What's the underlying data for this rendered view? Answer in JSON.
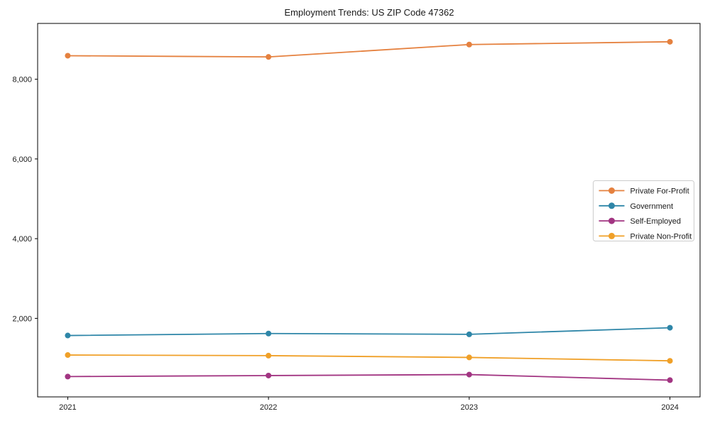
{
  "chart_data": {
    "type": "line",
    "title": "Employment Trends: US ZIP Code 47362",
    "xlabel": "",
    "ylabel": "",
    "categories": [
      "2021",
      "2022",
      "2023",
      "2024"
    ],
    "series": [
      {
        "name": "Private For-Profit",
        "color": "#E5813F",
        "values": [
          8590,
          8560,
          8870,
          8940
        ]
      },
      {
        "name": "Government",
        "color": "#2E86A8",
        "values": [
          1570,
          1620,
          1600,
          1765
        ]
      },
      {
        "name": "Self-Employed",
        "color": "#A23582",
        "values": [
          540,
          565,
          590,
          450
        ]
      },
      {
        "name": "Private Non-Profit",
        "color": "#F0A028",
        "values": [
          1080,
          1065,
          1020,
          935
        ]
      }
    ],
    "ylim": [
      30,
      9400
    ],
    "y_ticks": [
      2000,
      4000,
      6000,
      8000
    ],
    "y_tick_labels": [
      "2,000",
      "4,000",
      "6,000",
      "8,000"
    ],
    "x_tick_labels": [
      "2021",
      "2022",
      "2023",
      "2024"
    ],
    "legend_position": "center-right",
    "grid": false,
    "marker": "circle",
    "axis_color": "#000000",
    "legend_border_color": "#cccccc"
  }
}
